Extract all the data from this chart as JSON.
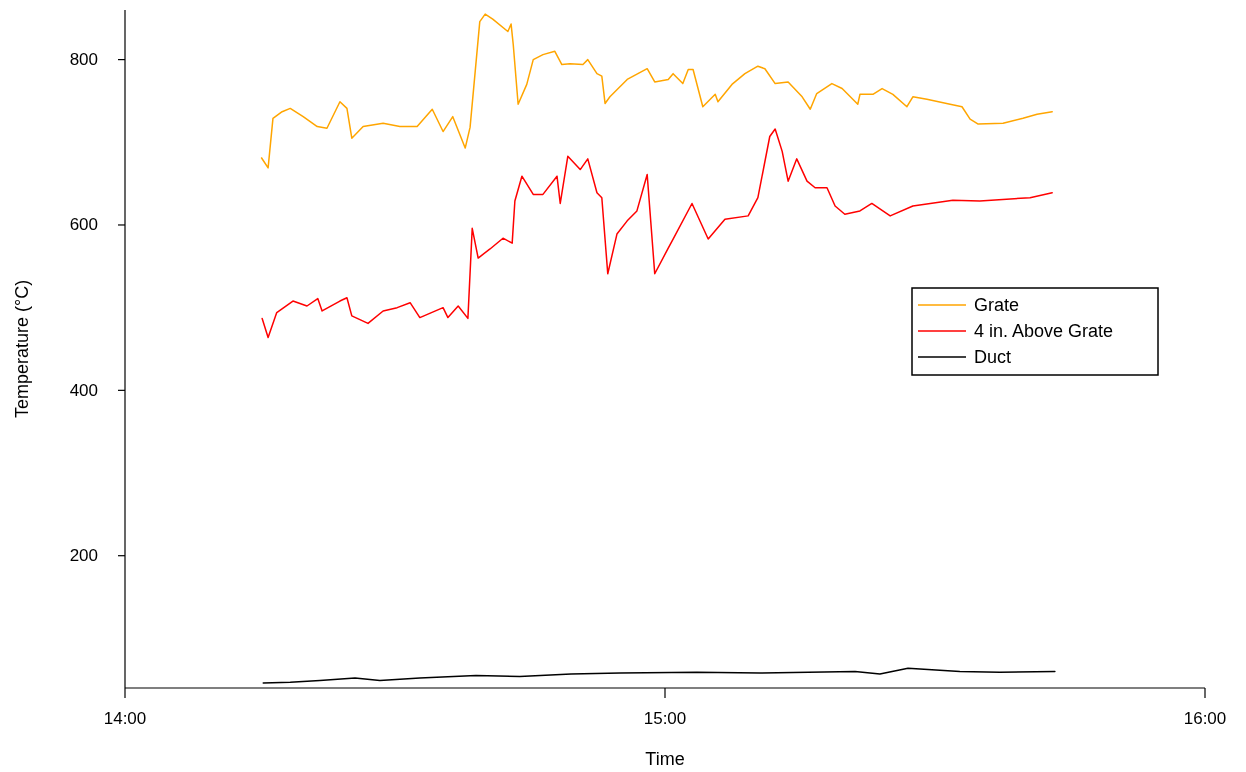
{
  "chart_data": {
    "type": "line",
    "xlabel": "Time",
    "ylabel": "Temperature (°C)",
    "xlim": [
      14,
      16
    ],
    "xticks": [
      {
        "value": 14,
        "label": "14:00"
      },
      {
        "value": 15,
        "label": "15:00"
      },
      {
        "value": 16,
        "label": "16:00"
      }
    ],
    "ylim": [
      40,
      860
    ],
    "yticks": [
      200,
      400,
      600,
      800
    ],
    "grid": false,
    "legend": "right",
    "series": [
      {
        "name": "Grate",
        "color": "#ffa500",
        "x": [
          14.253,
          14.265,
          14.274,
          14.291,
          14.306,
          14.33,
          14.356,
          14.374,
          14.398,
          14.411,
          14.42,
          14.441,
          14.478,
          14.509,
          14.541,
          14.569,
          14.589,
          14.607,
          14.63,
          14.639,
          14.657,
          14.667,
          14.681,
          14.709,
          14.715,
          14.719,
          14.728,
          14.744,
          14.756,
          14.774,
          14.796,
          14.809,
          14.824,
          14.848,
          14.857,
          14.874,
          14.883,
          14.889,
          14.898,
          14.93,
          14.967,
          14.981,
          15.006,
          15.015,
          15.033,
          15.043,
          15.052,
          15.07,
          15.093,
          15.098,
          15.124,
          15.148,
          15.172,
          15.185,
          15.204,
          15.228,
          15.254,
          15.269,
          15.281,
          15.309,
          15.328,
          15.357,
          15.361,
          15.385,
          15.402,
          15.422,
          15.448,
          15.459,
          15.485,
          15.528,
          15.55,
          15.565,
          15.58,
          15.626,
          15.663,
          15.689,
          15.717
        ],
        "values": [
          681,
          669,
          729,
          737,
          741,
          731,
          719,
          717,
          749,
          741,
          705,
          719,
          723,
          719,
          719,
          740,
          713,
          731,
          693,
          718,
          846,
          855,
          849,
          834,
          843,
          818,
          746,
          770,
          800,
          806,
          810,
          794,
          795,
          794,
          800,
          783,
          780,
          747,
          755,
          776,
          789,
          773,
          776,
          783,
          771,
          788,
          788,
          743,
          758,
          749,
          770,
          783,
          792,
          789,
          771,
          773,
          755,
          740,
          759,
          771,
          765,
          746,
          758,
          758,
          765,
          758,
          743,
          755,
          752,
          746,
          743,
          728,
          722,
          723,
          729,
          734,
          737
        ]
      },
      {
        "name": "4 in. Above Grate",
        "color": "#ff0000",
        "x": [
          14.254,
          14.265,
          14.281,
          14.311,
          14.337,
          14.357,
          14.365,
          14.398,
          14.411,
          14.42,
          14.45,
          14.478,
          14.504,
          14.528,
          14.546,
          14.589,
          14.598,
          14.617,
          14.635,
          14.643,
          14.654,
          14.676,
          14.7,
          14.717,
          14.722,
          14.735,
          14.756,
          14.774,
          14.8,
          14.806,
          14.82,
          14.843,
          14.857,
          14.874,
          14.883,
          14.894,
          14.911,
          14.93,
          14.948,
          14.967,
          14.981,
          15.006,
          15.015,
          15.05,
          15.08,
          15.111,
          15.154,
          15.172,
          15.194,
          15.204,
          15.217,
          15.228,
          15.244,
          15.263,
          15.278,
          15.3,
          15.315,
          15.333,
          15.361,
          15.383,
          15.417,
          15.459,
          15.533,
          15.583,
          15.676,
          15.717
        ],
        "values": [
          487,
          464,
          494,
          508,
          502,
          511,
          496,
          508,
          512,
          490,
          481,
          496,
          500,
          506,
          488,
          500,
          488,
          502,
          487,
          596,
          560,
          571,
          584,
          578,
          629,
          659,
          637,
          637,
          659,
          626,
          683,
          667,
          680,
          639,
          633,
          541,
          589,
          605,
          617,
          661,
          541,
          572,
          583,
          626,
          583,
          607,
          611,
          633,
          707,
          716,
          689,
          653,
          680,
          653,
          645,
          645,
          623,
          613,
          617,
          626,
          611,
          623,
          630,
          629,
          633,
          639
        ]
      },
      {
        "name": "Duct",
        "color": "#000000",
        "x": [
          14.256,
          14.306,
          14.361,
          14.426,
          14.472,
          14.546,
          14.65,
          14.731,
          14.826,
          14.917,
          15.059,
          15.176,
          15.352,
          15.398,
          15.45,
          15.546,
          15.62,
          15.722
        ],
        "values": [
          46,
          47,
          49,
          52,
          49,
          52,
          55,
          54,
          57,
          58,
          59,
          58,
          60,
          57,
          64,
          60,
          59,
          60
        ]
      }
    ]
  }
}
